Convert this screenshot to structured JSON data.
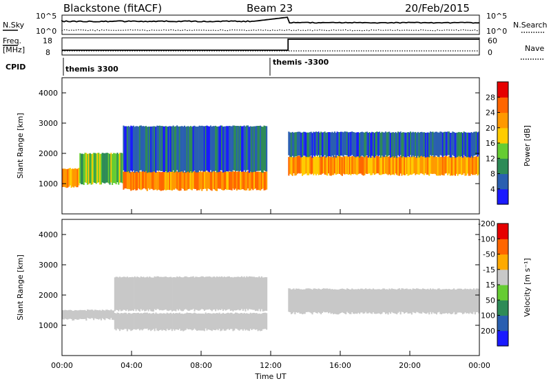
{
  "header": {
    "station": "Blackstone (fitACF)",
    "beam": "Beam 23",
    "date": "20/Feb/2015"
  },
  "summary_panels": {
    "sky_label": "N.Sky",
    "search_label": "N.Search",
    "sky_ticks": [
      "10^5",
      "10^0"
    ],
    "search_ticks": [
      "10^5",
      "10^0"
    ],
    "freq_label": "Freq.",
    "freq_unit": "[MHz]",
    "freq_ticks": [
      "18",
      "8"
    ],
    "nave_label": "Nave",
    "nave_ticks": [
      "60",
      "0"
    ],
    "cpid_label": "CPID",
    "cpid_segments": [
      "themis 3300",
      "themis -3300"
    ]
  },
  "power_panel": {
    "ylabel": "Slant Range [km]",
    "yticks": [
      "1000",
      "2000",
      "3000",
      "4000"
    ],
    "colorbar_label": "Power [dB]",
    "colorbar_ticks": [
      "4",
      "8",
      "12",
      "16",
      "20",
      "24",
      "28"
    ],
    "colors": [
      "#1a1aff",
      "#2a5fb0",
      "#2e8b57",
      "#66cc33",
      "#ffcc00",
      "#ff9900",
      "#ff6600",
      "#e60000"
    ]
  },
  "velocity_panel": {
    "ylabel": "Slant Range [km]",
    "yticks": [
      "1000",
      "2000",
      "3000",
      "4000"
    ],
    "colorbar_label": "Velocity [m s⁻¹]",
    "colorbar_ticks": [
      "200",
      "100",
      "50",
      "15",
      "-15",
      "-50",
      "-100",
      "-200"
    ],
    "colors": [
      "#1a1aff",
      "#2a5fb0",
      "#2e8b57",
      "#66cc33",
      "#c8c8c8",
      "#ffaa00",
      "#ff6600",
      "#e60000"
    ],
    "ground_scatter_color": "#c8c8c8"
  },
  "xaxis": {
    "label": "Time UT",
    "ticks": [
      "00:00",
      "04:00",
      "08:00",
      "12:00",
      "16:00",
      "20:00",
      "00:00"
    ]
  },
  "chart_data": [
    {
      "type": "heatmap",
      "title": "Power",
      "x_range_hours": [
        0,
        24
      ],
      "y_range_km": [
        0,
        4500
      ],
      "ylabel": "Slant Range [km]",
      "xlabel": "Time UT",
      "colorbar": "Power [dB]",
      "colorbar_range": [
        0,
        30
      ],
      "bands": [
        {
          "t_start": 0.0,
          "t_end": 1.0,
          "range_lo": 900,
          "range_hi": 1500,
          "power_db": 20
        },
        {
          "t_start": 1.0,
          "t_end": 3.5,
          "range_lo": 1000,
          "range_hi": 2000,
          "power_db": 12
        },
        {
          "t_start": 3.5,
          "t_end": 11.8,
          "range_lo": 800,
          "range_hi": 1400,
          "power_db": 22
        },
        {
          "t_start": 3.5,
          "t_end": 11.8,
          "range_lo": 1400,
          "range_hi": 2900,
          "power_db": 6
        },
        {
          "t_start": 13.0,
          "t_end": 24.0,
          "range_lo": 1300,
          "range_hi": 1900,
          "power_db": 20
        },
        {
          "t_start": 13.0,
          "t_end": 24.0,
          "range_lo": 1900,
          "range_hi": 2700,
          "power_db": 6
        }
      ]
    },
    {
      "type": "heatmap",
      "title": "Velocity",
      "x_range_hours": [
        0,
        24
      ],
      "y_range_km": [
        0,
        4500
      ],
      "ylabel": "Slant Range [km]",
      "xlabel": "Time UT",
      "colorbar": "Velocity [m s⁻¹]",
      "colorbar_range": [
        -250,
        250
      ],
      "bands": [
        {
          "t_start": 0.0,
          "t_end": 3.0,
          "range_lo": 1200,
          "range_hi": 1500,
          "velocity": 0
        },
        {
          "t_start": 3.0,
          "t_end": 11.8,
          "range_lo": 850,
          "range_hi": 1400,
          "velocity": -40
        },
        {
          "t_start": 3.0,
          "t_end": 11.8,
          "range_lo": 1500,
          "range_hi": 2600,
          "velocity": 0
        },
        {
          "t_start": 13.0,
          "t_end": 24.0,
          "range_lo": 1400,
          "range_hi": 2200,
          "velocity": 0
        }
      ]
    }
  ]
}
